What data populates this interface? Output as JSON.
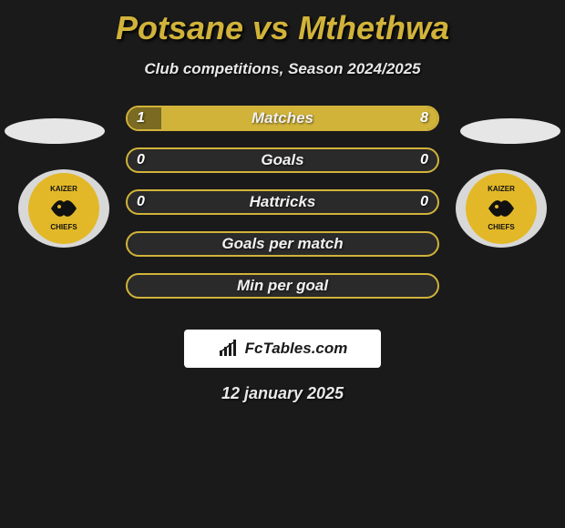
{
  "title": {
    "player1": "Potsane",
    "vs": "vs",
    "player2": "Mthethwa",
    "color": "#d1b33a"
  },
  "subtitle": "Club competitions, Season 2024/2025",
  "subtitle_color": "#e8e8e8",
  "player_oval_color": "#e6e6e6",
  "club": {
    "name_top": "KAIZER",
    "name_bottom": "CHIEFS",
    "badge_outer": "#d8d8d8",
    "badge_inner": "#e3b828",
    "badge_text_color": "#111111"
  },
  "bars": {
    "border_color": "#d1b33a",
    "track_color": "#2a2a2a",
    "fill_left_color": "#7a6a22",
    "fill_right_color": "#d1b33a",
    "label_color": "#f1f1f1",
    "value_color": "#ffffff",
    "rows": [
      {
        "label": "Matches",
        "left_val": "1",
        "right_val": "8",
        "left_pct": 11,
        "right_pct": 89,
        "show_vals": true
      },
      {
        "label": "Goals",
        "left_val": "0",
        "right_val": "0",
        "left_pct": 0,
        "right_pct": 0,
        "show_vals": true
      },
      {
        "label": "Hattricks",
        "left_val": "0",
        "right_val": "0",
        "left_pct": 0,
        "right_pct": 0,
        "show_vals": true
      },
      {
        "label": "Goals per match",
        "left_val": "",
        "right_val": "",
        "left_pct": 0,
        "right_pct": 0,
        "show_vals": false
      },
      {
        "label": "Min per goal",
        "left_val": "",
        "right_val": "",
        "left_pct": 0,
        "right_pct": 0,
        "show_vals": false
      }
    ]
  },
  "brand": {
    "bg": "#ffffff",
    "text": "FcTables.com",
    "text_color": "#1a1a1a",
    "icon_color": "#1a1a1a"
  },
  "date": "12 january 2025",
  "date_color": "#e8e8e8",
  "background": "#1a1a1a"
}
